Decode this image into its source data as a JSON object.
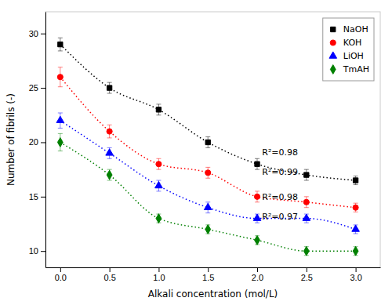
{
  "chart_data": {
    "type": "scatter",
    "x_label": "Alkali concentration (mol/L)",
    "y_label": "Number of fibrils (-)",
    "x": [
      0.0,
      0.5,
      1.0,
      1.5,
      2.0,
      2.5,
      3.0
    ],
    "series": [
      {
        "name": "NaOH",
        "color": "#000000",
        "marker": "square",
        "line_style": "dotted",
        "values": [
          29.0,
          25.0,
          23.0,
          20.0,
          18.0,
          17.0,
          16.5
        ],
        "errors": [
          0.6,
          0.5,
          0.5,
          0.5,
          0.5,
          0.5,
          0.4
        ]
      },
      {
        "name": "KOH",
        "color": "#ff0000",
        "marker": "circle",
        "line_style": "dotted",
        "values": [
          26.0,
          21.0,
          18.0,
          17.2,
          15.0,
          14.5,
          14.0
        ],
        "errors": [
          0.9,
          0.6,
          0.5,
          0.5,
          0.5,
          0.5,
          0.4
        ]
      },
      {
        "name": "LiOH",
        "color": "#0000ff",
        "marker": "triangle",
        "line_style": "dotted",
        "values": [
          22.0,
          19.0,
          16.0,
          14.0,
          13.0,
          13.0,
          12.0
        ],
        "errors": [
          0.7,
          0.5,
          0.5,
          0.5,
          0.4,
          0.4,
          0.4
        ]
      },
      {
        "name": "TmAH",
        "color": "#008000",
        "marker": "diamond",
        "line_style": "dotted",
        "values": [
          20.0,
          17.0,
          13.0,
          12.0,
          11.0,
          10.0,
          10.0
        ],
        "errors": [
          0.8,
          0.5,
          0.4,
          0.4,
          0.4,
          0.4,
          0.4
        ]
      }
    ],
    "annotations": [
      {
        "text": "R²=0.98",
        "x": 2.05,
        "y": 19.0
      },
      {
        "text": "R²=0.99",
        "x": 2.05,
        "y": 17.2
      },
      {
        "text": "R²=0.98",
        "x": 2.05,
        "y": 14.9
      },
      {
        "text": "R²=0.97",
        "x": 2.05,
        "y": 13.1
      }
    ],
    "xlim": [
      -0.15,
      3.25
    ],
    "ylim": [
      8.5,
      32
    ],
    "xticks": [
      {
        "value": 0.0,
        "label": "0.0"
      },
      0.5,
      {
        "value": 1.0,
        "label": "1.0"
      },
      1.5,
      {
        "value": 2.0,
        "label": "2.0"
      },
      2.5,
      {
        "value": 3.0,
        "label": "3.0"
      }
    ],
    "yticks": [
      10,
      15,
      20,
      25,
      30
    ],
    "legend": "upper right",
    "grid": false
  }
}
